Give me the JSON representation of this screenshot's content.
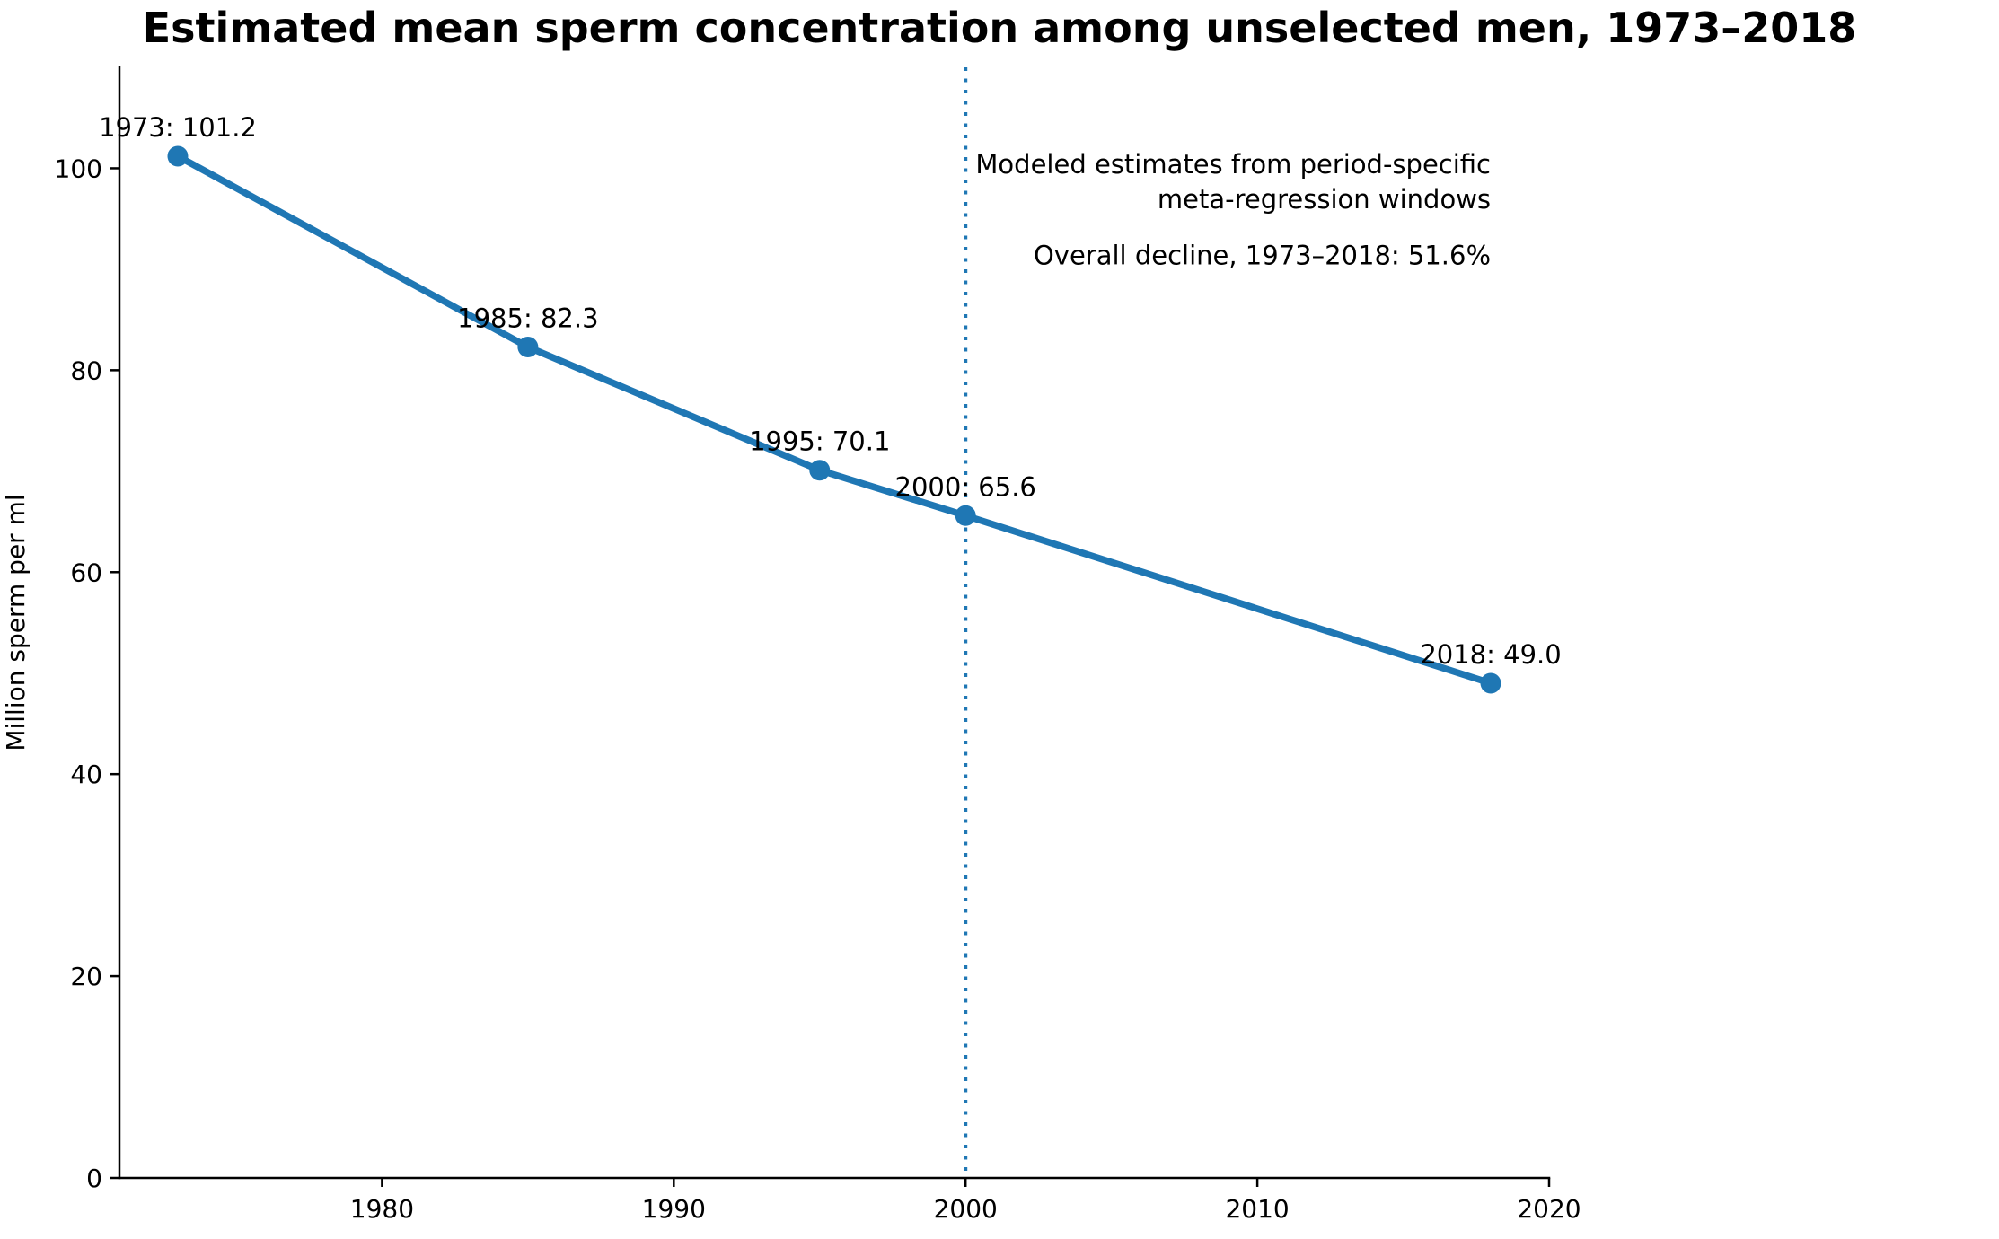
{
  "title": "Estimated mean sperm concentration among unselected men, 1973–2018",
  "chart_data": {
    "type": "line",
    "title": "Estimated mean sperm concentration among unselected men, 1973–2018",
    "xlabel": "",
    "ylabel": "Million sperm per ml",
    "xlim": [
      1971,
      2020
    ],
    "ylim": [
      0,
      110
    ],
    "xticks": [
      1980,
      1990,
      2000,
      2010,
      2020
    ],
    "yticks": [
      0,
      20,
      40,
      60,
      80,
      100
    ],
    "grid": false,
    "legend": null,
    "series": [
      {
        "name": "Estimated mean sperm concentration",
        "x": [
          1973,
          1985,
          1995,
          2000,
          2018
        ],
        "y": [
          101.2,
          82.3,
          70.1,
          65.6,
          49.0
        ],
        "color": "#1f77b4",
        "marker": "circle"
      }
    ],
    "point_labels": [
      "1973: 101.2",
      "1985: 82.3",
      "1995: 70.1",
      "2000: 65.6",
      "2018: 49.0"
    ],
    "reference_line": {
      "orientation": "vertical",
      "x": 2000,
      "style": "dotted",
      "color": "#1f77b4"
    },
    "annotations": [
      {
        "lines": [
          "Modeled estimates from period-specific",
          "meta-regression windows"
        ],
        "x": 2018,
        "y": 99.5,
        "align": "right"
      },
      {
        "lines": [
          "Overall decline, 1973–2018: 51.6%"
        ],
        "x": 2018,
        "y": 90.5,
        "align": "right"
      }
    ]
  }
}
